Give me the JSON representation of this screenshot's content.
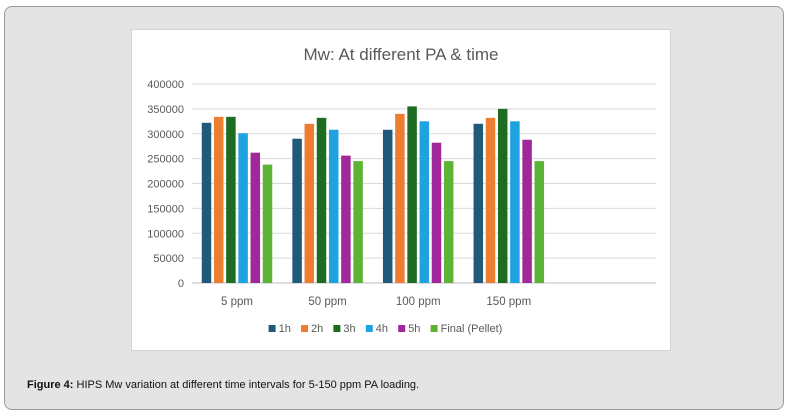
{
  "caption": {
    "label": "Figure 4:",
    "text": "HIPS Mw variation at different time intervals for 5-150 ppm PA loading."
  },
  "chart_data": {
    "type": "bar",
    "title": "Mw: At different PA & time",
    "xlabel": "",
    "ylabel": "",
    "ylim": [
      0,
      400000
    ],
    "yticks": [
      0,
      50000,
      100000,
      150000,
      200000,
      250000,
      300000,
      350000,
      400000
    ],
    "ytick_labels": [
      "0",
      "50000",
      "100000",
      "150000",
      "200000",
      "250000",
      "300000",
      "350000",
      "400000"
    ],
    "categories": [
      "5 ppm",
      "50 ppm",
      "100 ppm",
      "150 ppm"
    ],
    "legend_position": "bottom",
    "grid": true,
    "series": [
      {
        "name": "1h",
        "color": "#1f5a7a",
        "values": [
          322000,
          290000,
          308000,
          320000
        ]
      },
      {
        "name": "2h",
        "color": "#ed7d31",
        "values": [
          334000,
          320000,
          340000,
          332000
        ]
      },
      {
        "name": "3h",
        "color": "#1e6b22",
        "values": [
          334000,
          332000,
          355000,
          350000
        ]
      },
      {
        "name": "4h",
        "color": "#1ea3e0",
        "values": [
          301000,
          308000,
          325000,
          325000
        ]
      },
      {
        "name": "5h",
        "color": "#a0289a",
        "values": [
          262000,
          256000,
          282000,
          288000
        ]
      },
      {
        "name": "Final (Pellet)",
        "color": "#5cb336",
        "values": [
          238000,
          245000,
          245000,
          245000
        ]
      }
    ]
  }
}
